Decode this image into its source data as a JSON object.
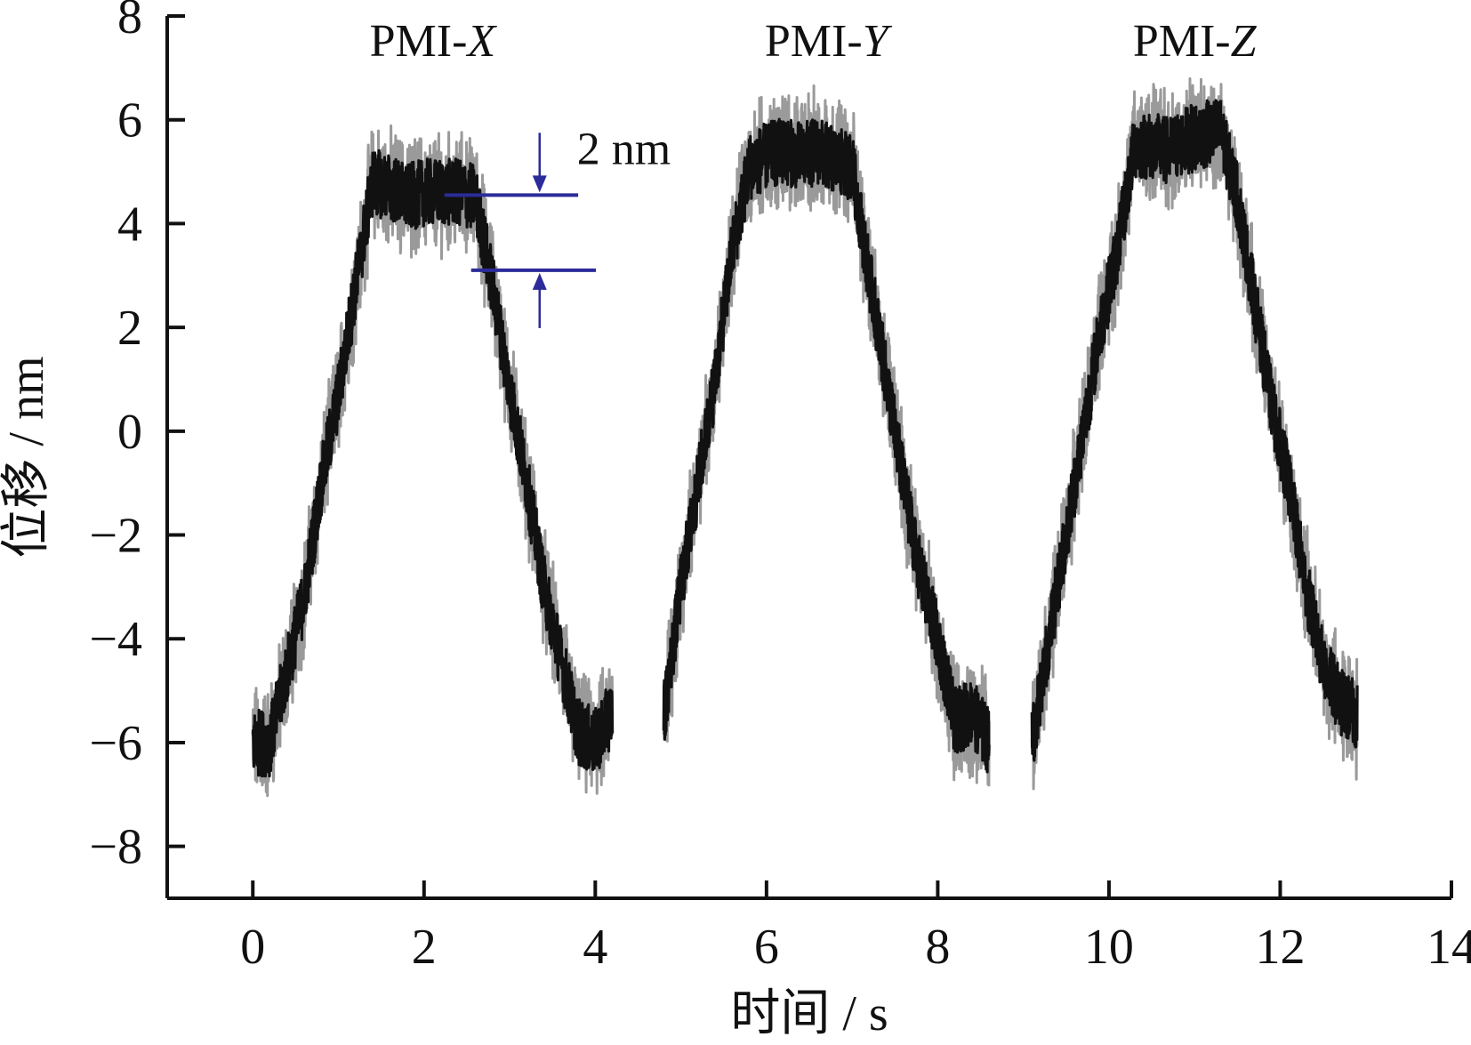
{
  "chart_data": {
    "type": "line",
    "title": "",
    "xlabel": "时间 / s",
    "ylabel": "位移 / nm",
    "xlim": [
      -1,
      14
    ],
    "ylim": [
      -9,
      8
    ],
    "x_ticks": [
      0,
      2,
      4,
      6,
      8,
      10,
      12,
      14
    ],
    "y_ticks": [
      -8,
      -6,
      -4,
      -2,
      0,
      2,
      4,
      6,
      8
    ],
    "x_tick_labels": [
      "0",
      "2",
      "4",
      "6",
      "8",
      "10",
      "12",
      "14"
    ],
    "y_tick_labels": [
      "−8",
      "−6",
      "−4",
      "−2",
      "0",
      "2",
      "4",
      "6",
      "8"
    ],
    "grid": false,
    "legend": "none",
    "series_color": "#111111",
    "annotation_color": "#2b2b99",
    "series": [
      {
        "label_prefix": "PMI-",
        "label_axis": "X",
        "x": [
          0.0,
          0.2,
          0.4,
          0.6,
          0.8,
          1.0,
          1.2,
          1.4,
          1.6,
          1.8,
          2.0,
          2.2,
          2.4,
          2.6,
          2.8,
          3.0,
          3.2,
          3.4,
          3.6,
          3.8,
          4.0,
          4.2
        ],
        "y": [
          -6.0,
          -6.0,
          -4.6,
          -3.2,
          -1.0,
          0.7,
          2.8,
          4.8,
          4.7,
          4.5,
          4.6,
          4.6,
          4.6,
          4.5,
          2.8,
          0.8,
          -1.0,
          -3.0,
          -4.4,
          -5.8,
          -6.0,
          -5.4
        ]
      },
      {
        "label_prefix": "PMI-",
        "label_axis": "Y",
        "x": [
          4.8,
          5.0,
          5.2,
          5.4,
          5.6,
          5.8,
          6.0,
          6.2,
          6.4,
          6.6,
          6.8,
          7.0,
          7.2,
          7.4,
          7.6,
          7.8,
          8.0,
          8.2,
          8.4,
          8.6
        ],
        "y": [
          -5.5,
          -3.0,
          -1.0,
          1.0,
          3.5,
          5.1,
          5.3,
          5.4,
          5.3,
          5.4,
          5.2,
          5.1,
          3.0,
          1.0,
          -1.0,
          -2.8,
          -4.0,
          -5.6,
          -5.4,
          -6.0
        ]
      },
      {
        "label_prefix": "PMI-",
        "label_axis": "Z",
        "x": [
          9.1,
          9.3,
          9.5,
          9.7,
          9.9,
          10.1,
          10.3,
          10.5,
          10.7,
          10.9,
          11.1,
          11.3,
          11.5,
          11.7,
          11.9,
          12.1,
          12.3,
          12.5,
          12.7,
          12.9
        ],
        "y": [
          -6.0,
          -4.0,
          -2.0,
          0.0,
          2.0,
          3.5,
          5.5,
          5.5,
          5.4,
          5.6,
          5.7,
          5.8,
          4.5,
          2.5,
          0.5,
          -1.0,
          -3.0,
          -4.5,
          -5.2,
          -5.5
        ]
      }
    ],
    "annotation": {
      "text": "2 nm",
      "upper_y": 4.55,
      "lower_y": 3.1,
      "x_from": 2.55,
      "x_to": 3.8
    }
  }
}
